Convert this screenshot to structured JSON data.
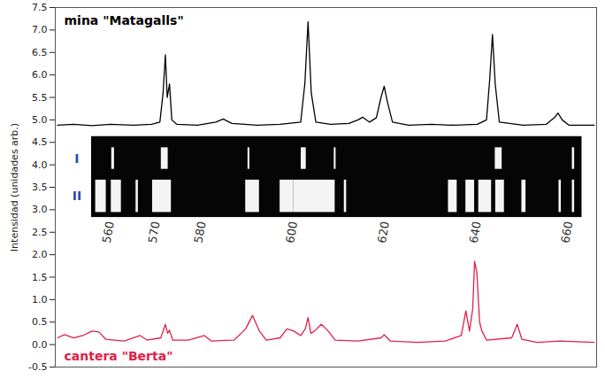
{
  "chart_data": {
    "type": "line",
    "y_label": "Intensidad (unidades arb.)",
    "xlim": [
      548,
      666
    ],
    "xticks": [
      560,
      570,
      580,
      600,
      620,
      640,
      660
    ],
    "ylim": [
      -0.5,
      7.5
    ],
    "yticks": [
      -0.5,
      {
        "value": 0,
        "label": "0.0"
      },
      0.5,
      {
        "value": 1,
        "label": "1.0"
      },
      1.5,
      {
        "value": 2,
        "label": "2.0"
      },
      2.5,
      {
        "value": 3,
        "label": "3.0"
      },
      3.5,
      {
        "value": 4,
        "label": "4.0"
      },
      4.5,
      {
        "value": 5,
        "label": "5.0"
      },
      5.5,
      {
        "value": 6,
        "label": "6.0"
      },
      6.5,
      {
        "value": 7,
        "label": "7.0"
      },
      7.5
    ],
    "grid": false,
    "series": [
      {
        "name": "mina \"Matagalls\"",
        "color": "#000000",
        "x": [
          548.5,
          552,
          556,
          560,
          565,
          569,
          570.8,
          571.5,
          572.0,
          572.4,
          572.9,
          573.4,
          574.5,
          579,
          583,
          584.6,
          586.5,
          592,
          597,
          601.5,
          602.4,
          603.1,
          603.8,
          604.8,
          608,
          612,
          614,
          615,
          616.5,
          618,
          619,
          619.7,
          620.4,
          621.5,
          625,
          630,
          635,
          640,
          642,
          642.7,
          643.3,
          643.9,
          644.8,
          650,
          655,
          656.8,
          657.6,
          658.5,
          660,
          665.5
        ],
        "values": [
          4.88,
          4.9,
          4.87,
          4.9,
          4.88,
          4.9,
          4.95,
          5.6,
          6.45,
          5.5,
          5.8,
          5.0,
          4.9,
          4.88,
          4.95,
          5.02,
          4.92,
          4.88,
          4.9,
          4.95,
          5.8,
          7.18,
          5.6,
          4.95,
          4.9,
          4.92,
          5.0,
          5.06,
          4.95,
          5.05,
          5.5,
          5.75,
          5.4,
          4.95,
          4.88,
          4.9,
          4.88,
          4.9,
          5.0,
          5.9,
          6.9,
          5.8,
          4.95,
          4.88,
          4.9,
          5.05,
          5.15,
          5.0,
          4.88,
          4.88
        ]
      },
      {
        "name": "cantera \"Berta\"",
        "color": "#e0204a",
        "x": [
          548.5,
          550,
          552,
          554,
          556,
          557.5,
          559,
          563,
          566.5,
          568,
          571,
          572,
          572.5,
          572.9,
          573.6,
          577,
          580.5,
          582,
          587,
          589.5,
          591,
          592.5,
          594,
          597,
          598.5,
          600,
          601.5,
          602.5,
          603.1,
          603.7,
          604.5,
          606,
          607.5,
          609,
          614,
          619,
          619.7,
          621,
          627,
          633,
          636.5,
          637.5,
          638.3,
          639,
          639.4,
          639.9,
          640.5,
          641,
          642,
          647.5,
          648.7,
          649.7,
          653,
          658,
          665.5
        ],
        "values": [
          0.15,
          0.22,
          0.15,
          0.2,
          0.3,
          0.28,
          0.12,
          0.08,
          0.2,
          0.1,
          0.15,
          0.45,
          0.25,
          0.32,
          0.1,
          0.1,
          0.2,
          0.08,
          0.1,
          0.35,
          0.65,
          0.3,
          0.1,
          0.15,
          0.35,
          0.3,
          0.2,
          0.35,
          0.6,
          0.25,
          0.3,
          0.45,
          0.3,
          0.1,
          0.08,
          0.15,
          0.22,
          0.08,
          0.05,
          0.08,
          0.2,
          0.75,
          0.3,
          0.8,
          1.85,
          1.6,
          0.5,
          0.3,
          0.1,
          0.15,
          0.45,
          0.12,
          0.05,
          0.08,
          0.05
        ]
      }
    ],
    "bands": [
      {
        "name": "I",
        "lines": [
          [
            560.3,
            560.9
          ],
          [
            571.1,
            572.6
          ],
          [
            590.0,
            590.4
          ],
          [
            601.6,
            602.7
          ],
          [
            608.8,
            609.2
          ],
          [
            643.9,
            645.4
          ],
          [
            660.7,
            661.2
          ]
        ]
      },
      {
        "name": "II",
        "lines": [
          [
            556.8,
            559.1
          ],
          [
            560.2,
            562.4
          ],
          [
            565.6,
            566.1
          ],
          [
            569.2,
            573.3
          ],
          [
            589.5,
            592.5
          ],
          [
            597.0,
            600.0
          ],
          [
            600.0,
            609.0
          ],
          [
            611.0,
            611.5
          ],
          [
            633.7,
            635.6
          ],
          [
            637.5,
            639.4
          ],
          [
            640.3,
            643.1
          ],
          [
            644.0,
            645.9
          ],
          [
            649.7,
            650.6
          ],
          [
            657.8,
            658.3
          ],
          [
            660.7,
            661.2
          ]
        ]
      }
    ]
  }
}
